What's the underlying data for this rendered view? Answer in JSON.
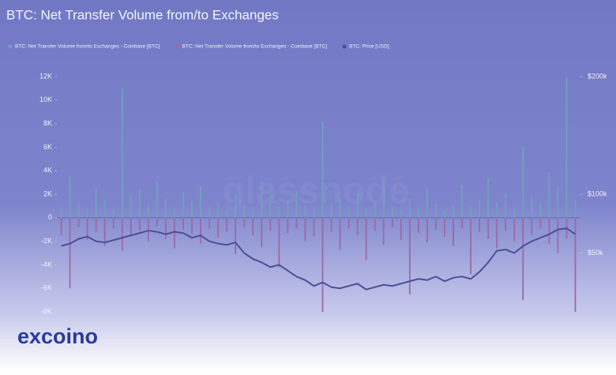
{
  "chart_data": {
    "type": "bar",
    "title": "BTC: Net Transfer Volume from/to Exchanges",
    "watermark": "glassnode",
    "brand": "excoino",
    "ylim": [
      -8000,
      12000
    ],
    "yticks": [
      {
        "value": 12000,
        "label": "12K"
      },
      {
        "value": 10000,
        "label": "10K"
      },
      {
        "value": 8000,
        "label": "8K"
      },
      {
        "value": 6000,
        "label": "6K"
      },
      {
        "value": 4000,
        "label": "4K"
      },
      {
        "value": 2000,
        "label": "2K"
      },
      0,
      {
        "value": -2000,
        "label": "-2K"
      },
      {
        "value": -4000,
        "label": "-4K"
      },
      {
        "value": -6000,
        "label": "-6K"
      },
      {
        "value": -8000,
        "label": "-8K"
      }
    ],
    "y2lim": [
      0,
      200000
    ],
    "y2ticks": [
      {
        "value": 200000,
        "label": "$200k"
      },
      {
        "value": 100000,
        "label": "$100k"
      },
      {
        "value": 50000,
        "label": "$50k"
      }
    ],
    "series": [
      {
        "name": "BTC: Net Transfer Volume from/to Exchanges - Coinbase [BTC]",
        "color": "#6fa3bb",
        "values": [
          900,
          3500,
          1200,
          800,
          2600,
          1500,
          700,
          11000,
          1900,
          2400,
          1100,
          3000,
          1600,
          800,
          2200,
          1400,
          2700,
          900,
          1300,
          600,
          2000,
          1100,
          700,
          3100,
          1800,
          900,
          1500,
          2300,
          1000,
          600,
          8200,
          1200,
          1700,
          900,
          2100,
          800,
          1400,
          3200,
          1000,
          700,
          1600,
          900,
          2500,
          1200,
          600,
          1100,
          2800,
          900,
          1500,
          3400,
          1300,
          2100,
          900,
          6000,
          1800,
          1200,
          3900,
          2600,
          12000,
          1500
        ]
      },
      {
        "name": "BTC: Net Transfer Volume from/to Exchanges - Coinbase [BTC]",
        "color": "#9a6aa2",
        "values": [
          -1500,
          -6000,
          -800,
          -1900,
          -1200,
          -2400,
          -900,
          -2800,
          -1600,
          -1100,
          -2000,
          -700,
          -1800,
          -2600,
          -1000,
          -1400,
          -2200,
          -900,
          -1700,
          -1200,
          -3100,
          -800,
          -1500,
          -2500,
          -1100,
          -4200,
          -1300,
          -900,
          -2000,
          -1600,
          -8000,
          -1200,
          -2700,
          -900,
          -1500,
          -3600,
          -1100,
          -2300,
          -800,
          -1900,
          -6500,
          -1300,
          -2100,
          -1000,
          -1600,
          -2400,
          -900,
          -4800,
          -1200,
          -1800,
          -2600,
          -1100,
          -2000,
          -7000,
          -1500,
          -900,
          -2200,
          -3000,
          -1800,
          -8000
        ]
      },
      {
        "name": "BTC: Price [USD]",
        "color": "#4b4f98",
        "axis": "y2",
        "values": [
          56000,
          58000,
          62000,
          64000,
          60000,
          59000,
          61000,
          63000,
          65000,
          67000,
          69000,
          68000,
          66000,
          68000,
          67000,
          63000,
          65000,
          60000,
          58000,
          57000,
          59000,
          50000,
          45000,
          42000,
          38000,
          40000,
          35000,
          30000,
          27000,
          22000,
          25000,
          21000,
          20000,
          22000,
          24000,
          19000,
          21000,
          23000,
          22000,
          24000,
          26000,
          28000,
          27000,
          30000,
          26000,
          29000,
          30000,
          28000,
          34000,
          42000,
          52000,
          53000,
          50000,
          56000,
          60000,
          63000,
          66000,
          70000,
          71000,
          66000
        ]
      }
    ]
  }
}
